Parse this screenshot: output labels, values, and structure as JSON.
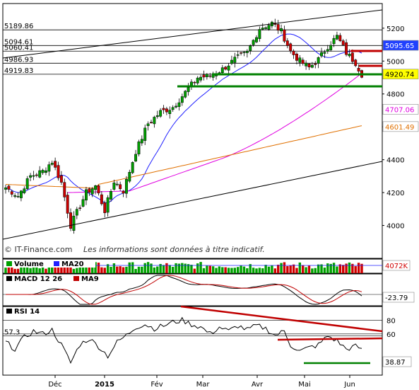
{
  "watermark": "© IT-Finance.com",
  "disclaimer": "Les informations sont données à titre indicatif.",
  "colors": {
    "bull": "#00a000",
    "bear": "#d00000",
    "ma20": "#2020ff",
    "ma50": "#e000e0",
    "ma100": "#e07000",
    "trend_red": "#c00000",
    "trend_green": "#008000",
    "price_box": "#ffff00",
    "ma20_box": "#2040ff"
  },
  "chart_data": [
    {
      "type": "candlestick",
      "title": "",
      "ylim": [
        3800,
        5350
      ],
      "y_ticks": [
        "3800",
        "4000",
        "4200",
        "4400",
        "4600",
        "4800",
        "5000",
        "5200"
      ],
      "x_ticks": [
        "Déc",
        "2015",
        "Fév",
        "Mar",
        "Avr",
        "Mai",
        "Jun"
      ],
      "level_lines": [
        {
          "label": "5189.86",
          "value": 5189.86
        },
        {
          "label": "5094.61",
          "value": 5094.61
        },
        {
          "label": "5060.41",
          "value": 5060.41
        },
        {
          "label": "4986.93",
          "value": 4986.93
        },
        {
          "label": "4919.83",
          "value": 4919.83
        }
      ],
      "price_labels": [
        {
          "label": "5095.65",
          "value": 5095.65,
          "kind": "ma20"
        },
        {
          "label": "4920.74",
          "value": 4920.74,
          "kind": "price"
        },
        {
          "label": "4707.06",
          "value": 4707.06,
          "kind": "ma50"
        },
        {
          "label": "4601.49",
          "value": 4601.49,
          "kind": "ma100"
        }
      ],
      "close_anchors": [
        [
          0,
          4230
        ],
        [
          4,
          4180
        ],
        [
          8,
          4300
        ],
        [
          12,
          4330
        ],
        [
          15,
          4390
        ],
        [
          18,
          4260
        ],
        [
          21,
          4000
        ],
        [
          23,
          4080
        ],
        [
          26,
          4200
        ],
        [
          29,
          4240
        ],
        [
          32,
          4090
        ],
        [
          35,
          4270
        ],
        [
          38,
          4210
        ],
        [
          42,
          4450
        ],
        [
          46,
          4620
        ],
        [
          50,
          4690
        ],
        [
          54,
          4720
        ],
        [
          58,
          4810
        ],
        [
          62,
          4900
        ],
        [
          66,
          4910
        ],
        [
          70,
          4950
        ],
        [
          74,
          5010
        ],
        [
          78,
          5050
        ],
        [
          82,
          5200
        ],
        [
          86,
          5230
        ],
        [
          89,
          5180
        ],
        [
          92,
          5060
        ],
        [
          95,
          5000
        ],
        [
          98,
          4960
        ],
        [
          101,
          5010
        ],
        [
          104,
          5090
        ],
        [
          107,
          5150
        ],
        [
          110,
          5050
        ],
        [
          113,
          4990
        ],
        [
          115,
          4920
        ]
      ]
    },
    {
      "type": "bar",
      "name": "Volume",
      "legend": [
        "Volume",
        "MA20"
      ],
      "value_label": "4072K"
    },
    {
      "type": "line",
      "name": "MACD 12 26",
      "legend": [
        "MACD 12 26",
        "MA9"
      ],
      "value_label": "-23.79"
    },
    {
      "type": "line",
      "name": "RSI 14",
      "legend": [
        "RSI 14"
      ],
      "ylim": [
        0,
        100
      ],
      "y_ticks": [
        "80",
        "60"
      ],
      "level_label": "57.3",
      "level": 57.3,
      "value_label": "38.87",
      "anchors": [
        [
          0,
          48
        ],
        [
          3,
          38
        ],
        [
          6,
          55
        ],
        [
          9,
          64
        ],
        [
          12,
          60
        ],
        [
          15,
          66
        ],
        [
          18,
          44
        ],
        [
          21,
          18
        ],
        [
          24,
          45
        ],
        [
          27,
          53
        ],
        [
          30,
          42
        ],
        [
          33,
          28
        ],
        [
          36,
          48
        ],
        [
          39,
          58
        ],
        [
          42,
          70
        ],
        [
          45,
          74
        ],
        [
          48,
          68
        ],
        [
          51,
          72
        ],
        [
          54,
          77
        ],
        [
          57,
          80
        ],
        [
          60,
          74
        ],
        [
          63,
          70
        ],
        [
          66,
          60
        ],
        [
          69,
          70
        ],
        [
          72,
          64
        ],
        [
          75,
          72
        ],
        [
          78,
          66
        ],
        [
          81,
          72
        ],
        [
          84,
          68
        ],
        [
          87,
          58
        ],
        [
          90,
          64
        ],
        [
          92,
          44
        ],
        [
          95,
          35
        ],
        [
          98,
          40
        ],
        [
          101,
          44
        ],
        [
          104,
          57
        ],
        [
          107,
          50
        ],
        [
          110,
          38
        ],
        [
          113,
          42
        ],
        [
          115,
          38.87
        ]
      ]
    }
  ]
}
